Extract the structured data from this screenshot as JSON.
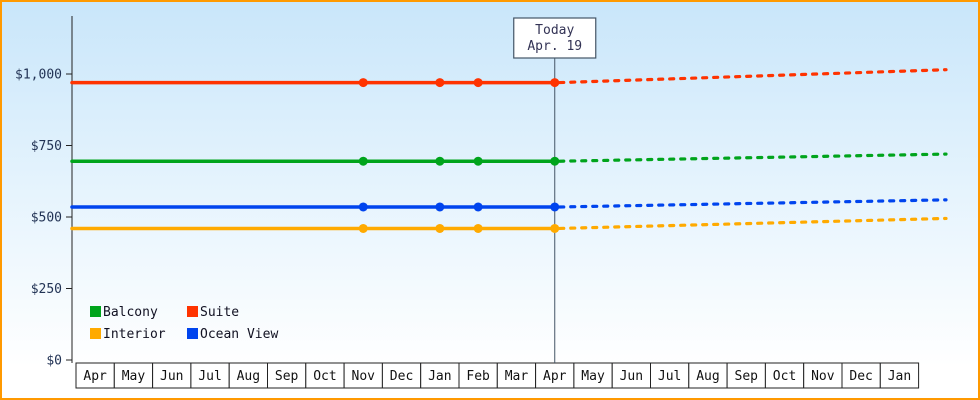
{
  "window": {
    "border_color": "#ff9900"
  },
  "chart_data": {
    "type": "line",
    "title": "",
    "grid": false,
    "legend_position": "bottom-left",
    "ylim": [
      0,
      1200
    ],
    "x_axis": {
      "months": [
        "Apr",
        "May",
        "Jun",
        "Jul",
        "Aug",
        "Sep",
        "Oct",
        "Nov",
        "Dec",
        "Jan",
        "Feb",
        "Mar",
        "Apr",
        "May",
        "Jun",
        "Jul",
        "Aug",
        "Sep",
        "Oct",
        "Nov",
        "Dec",
        "Jan"
      ]
    },
    "y_axis": {
      "ticks": [
        {
          "label": "$0",
          "value": 0
        },
        {
          "label": "$250",
          "value": 250
        },
        {
          "label": "$500",
          "value": 500
        },
        {
          "label": "$750",
          "value": 750
        },
        {
          "label": "$1,000",
          "value": 1000
        }
      ]
    },
    "today": {
      "index": 12,
      "lines": [
        "Today",
        "Apr. 19"
      ]
    },
    "series": [
      {
        "name": "Suite",
        "color": "#ff3300",
        "value": 970,
        "forecast_end": 1015,
        "markers": [
          7,
          9,
          10,
          12
        ]
      },
      {
        "name": "Balcony",
        "color": "#00a41c",
        "value": 695,
        "forecast_end": 720,
        "markers": [
          7,
          9,
          10,
          12
        ]
      },
      {
        "name": "Ocean View",
        "color": "#0044ee",
        "value": 535,
        "forecast_end": 560,
        "markers": [
          7,
          9,
          10,
          12
        ]
      },
      {
        "name": "Interior",
        "color": "#ffaa00",
        "value": 460,
        "forecast_end": 495,
        "markers": [
          7,
          9,
          10,
          12
        ]
      }
    ],
    "legend": {
      "rows": [
        [
          "Balcony",
          "Suite"
        ],
        [
          "Interior",
          "Ocean View"
        ]
      ]
    }
  }
}
